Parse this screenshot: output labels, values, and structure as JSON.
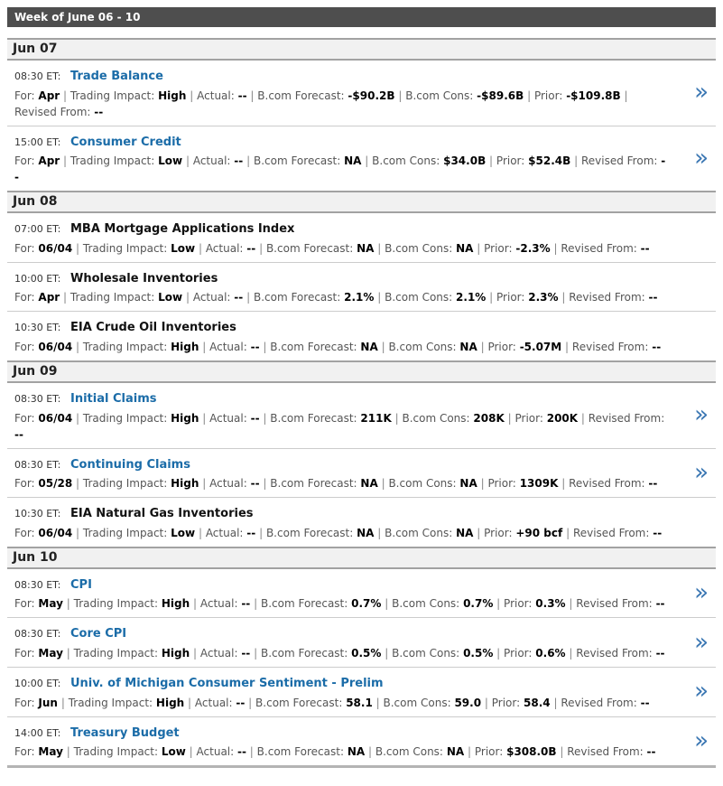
{
  "week": {
    "title": "Week of June 06 - 10"
  },
  "labels": {
    "for": "For:",
    "impact": "Trading Impact:",
    "actual": "Actual:",
    "forecast": "B.com Forecast:",
    "cons": "B.com Cons:",
    "prior": "Prior:",
    "revised": "Revised From:",
    "separator": "|"
  },
  "icons": {
    "chevron": "»"
  },
  "colors": {
    "week_bar_bg": "#4e4e4e",
    "day_header_bg": "#f1f1f1",
    "link_blue": "#1b6ca8",
    "chevron_blue": "#3b77b3",
    "impact_value": "#000000",
    "label_gray": "#555555"
  },
  "days": [
    {
      "date": "Jun 07",
      "events": [
        {
          "time": "08:30 ET:",
          "title": "Trade Balance",
          "is_link": true,
          "has_chevron": true,
          "fields": {
            "for": "Apr",
            "impact": "High",
            "actual": "--",
            "forecast": "-$90.2B",
            "cons": "-$89.6B",
            "prior": "-$109.8B",
            "revised": "--"
          }
        },
        {
          "time": "15:00 ET:",
          "title": "Consumer Credit",
          "is_link": true,
          "has_chevron": true,
          "fields": {
            "for": "Apr",
            "impact": "Low",
            "actual": "--",
            "forecast": "NA",
            "cons": "$34.0B",
            "prior": "$52.4B",
            "revised": "--"
          }
        }
      ]
    },
    {
      "date": "Jun 08",
      "events": [
        {
          "time": "07:00 ET:",
          "title": "MBA Mortgage Applications Index",
          "is_link": false,
          "has_chevron": false,
          "fields": {
            "for": "06/04",
            "impact": "Low",
            "actual": "--",
            "forecast": "NA",
            "cons": "NA",
            "prior": "-2.3%",
            "revised": "--"
          }
        },
        {
          "time": "10:00 ET:",
          "title": "Wholesale Inventories",
          "is_link": false,
          "has_chevron": false,
          "fields": {
            "for": "Apr",
            "impact": "Low",
            "actual": "--",
            "forecast": "2.1%",
            "cons": "2.1%",
            "prior": "2.3%",
            "revised": "--"
          }
        },
        {
          "time": "10:30 ET:",
          "title": "EIA Crude Oil Inventories",
          "is_link": false,
          "has_chevron": false,
          "fields": {
            "for": "06/04",
            "impact": "High",
            "actual": "--",
            "forecast": "NA",
            "cons": "NA",
            "prior": "-5.07M",
            "revised": "--"
          }
        }
      ]
    },
    {
      "date": "Jun 09",
      "events": [
        {
          "time": "08:30 ET:",
          "title": "Initial Claims",
          "is_link": true,
          "has_chevron": true,
          "fields": {
            "for": "06/04",
            "impact": "High",
            "actual": "--",
            "forecast": "211K",
            "cons": "208K",
            "prior": "200K",
            "revised": "--"
          }
        },
        {
          "time": "08:30 ET:",
          "title": "Continuing Claims",
          "is_link": true,
          "has_chevron": true,
          "fields": {
            "for": "05/28",
            "impact": "High",
            "actual": "--",
            "forecast": "NA",
            "cons": "NA",
            "prior": "1309K",
            "revised": "--"
          }
        },
        {
          "time": "10:30 ET:",
          "title": "EIA Natural Gas Inventories",
          "is_link": false,
          "has_chevron": false,
          "fields": {
            "for": "06/04",
            "impact": "Low",
            "actual": "--",
            "forecast": "NA",
            "cons": "NA",
            "prior": "+90 bcf",
            "revised": "--"
          }
        }
      ]
    },
    {
      "date": "Jun 10",
      "events": [
        {
          "time": "08:30 ET:",
          "title": "CPI",
          "is_link": true,
          "has_chevron": true,
          "fields": {
            "for": "May",
            "impact": "High",
            "actual": "--",
            "forecast": "0.7%",
            "cons": "0.7%",
            "prior": "0.3%",
            "revised": "--"
          }
        },
        {
          "time": "08:30 ET:",
          "title": "Core CPI",
          "is_link": true,
          "has_chevron": true,
          "fields": {
            "for": "May",
            "impact": "High",
            "actual": "--",
            "forecast": "0.5%",
            "cons": "0.5%",
            "prior": "0.6%",
            "revised": "--"
          }
        },
        {
          "time": "10:00 ET:",
          "title": "Univ. of Michigan Consumer Sentiment - Prelim",
          "is_link": true,
          "has_chevron": true,
          "fields": {
            "for": "Jun",
            "impact": "High",
            "actual": "--",
            "forecast": "58.1",
            "cons": "59.0",
            "prior": "58.4",
            "revised": "--"
          }
        },
        {
          "time": "14:00 ET:",
          "title": "Treasury Budget",
          "is_link": true,
          "has_chevron": true,
          "fields": {
            "for": "May",
            "impact": "Low",
            "actual": "--",
            "forecast": "NA",
            "cons": "NA",
            "prior": "$308.0B",
            "revised": "--"
          }
        }
      ]
    }
  ]
}
